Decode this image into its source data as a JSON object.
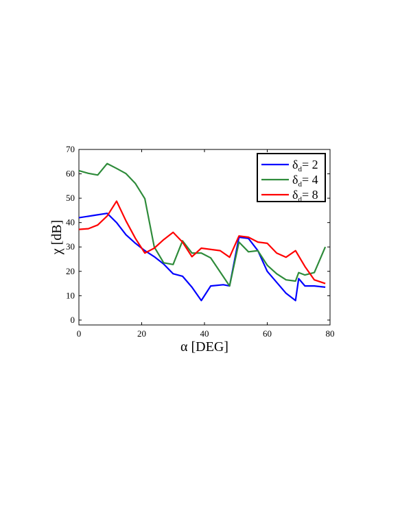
{
  "chart_data": {
    "type": "line",
    "xlabel": "α [DEG]",
    "ylabel": "χ [dB]",
    "xlim": [
      0,
      80
    ],
    "ylim": [
      -2,
      70
    ],
    "xticks": [
      0,
      20,
      40,
      60,
      80
    ],
    "yticks": [
      0,
      10,
      20,
      30,
      40,
      50,
      60,
      70
    ],
    "grid": false,
    "legend_position": "top-right",
    "series": [
      {
        "label_main": "δ",
        "label_sub": "d",
        "label_rest": "= 2",
        "color": "#0000ff",
        "points": [
          [
            0,
            42
          ],
          [
            5,
            43
          ],
          [
            9,
            43.8
          ],
          [
            12,
            40
          ],
          [
            15,
            35
          ],
          [
            18,
            31.5
          ],
          [
            21,
            28.5
          ],
          [
            24,
            26
          ],
          [
            27,
            23
          ],
          [
            30,
            19
          ],
          [
            33,
            18
          ],
          [
            36,
            13.5
          ],
          [
            39,
            8
          ],
          [
            42,
            14
          ],
          [
            46,
            14.5
          ],
          [
            48,
            14
          ],
          [
            51,
            34
          ],
          [
            54,
            33.5
          ],
          [
            57,
            28.5
          ],
          [
            60,
            20
          ],
          [
            63,
            15.5
          ],
          [
            66,
            11
          ],
          [
            69,
            8
          ],
          [
            70,
            17
          ],
          [
            72,
            14
          ],
          [
            75,
            14
          ],
          [
            78.5,
            13.5
          ]
        ]
      },
      {
        "label_main": "δ",
        "label_sub": "d",
        "label_rest": "= 4",
        "color": "#2e8b3a",
        "points": [
          [
            0,
            61.3
          ],
          [
            3,
            60.2
          ],
          [
            6,
            59.5
          ],
          [
            9,
            64.2
          ],
          [
            12,
            62.2
          ],
          [
            15,
            60.1
          ],
          [
            18,
            56
          ],
          [
            21,
            49.8
          ],
          [
            24,
            30
          ],
          [
            27,
            23.5
          ],
          [
            30,
            22.8
          ],
          [
            33,
            32.5
          ],
          [
            36,
            27.5
          ],
          [
            39,
            27.5
          ],
          [
            42,
            25.5
          ],
          [
            48,
            14
          ],
          [
            51,
            32
          ],
          [
            54,
            28
          ],
          [
            57,
            28.5
          ],
          [
            60,
            22.5
          ],
          [
            63,
            19
          ],
          [
            66,
            16.5
          ],
          [
            69,
            16
          ],
          [
            70,
            19.5
          ],
          [
            72,
            18.5
          ],
          [
            75,
            19.5
          ],
          [
            78.5,
            30
          ]
        ]
      },
      {
        "label_main": "δ",
        "label_sub": "d",
        "label_rest": "= 8",
        "color": "#ff0000",
        "points": [
          [
            0,
            37.2
          ],
          [
            3,
            37.5
          ],
          [
            6,
            39
          ],
          [
            9,
            42.7
          ],
          [
            12,
            48.8
          ],
          [
            15,
            40.7
          ],
          [
            18,
            33.5
          ],
          [
            21,
            27.5
          ],
          [
            24,
            29.5
          ],
          [
            27,
            33
          ],
          [
            30,
            36
          ],
          [
            33,
            32
          ],
          [
            36,
            26
          ],
          [
            39,
            29.5
          ],
          [
            45,
            28.5
          ],
          [
            48,
            25.8
          ],
          [
            51,
            34.5
          ],
          [
            54,
            34
          ],
          [
            57,
            32
          ],
          [
            60,
            31.5
          ],
          [
            63,
            27.5
          ],
          [
            66,
            25.8
          ],
          [
            69,
            28.5
          ],
          [
            72,
            22
          ],
          [
            75,
            16.5
          ],
          [
            78.5,
            15
          ]
        ]
      }
    ]
  }
}
